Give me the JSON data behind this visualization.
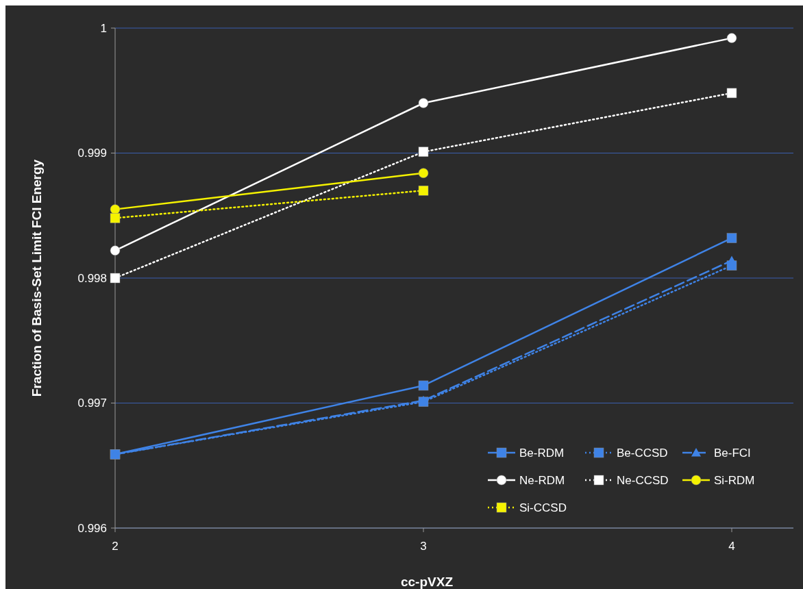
{
  "chart_data": {
    "type": "line",
    "xlabel": "cc-pVXZ",
    "ylabel": "Fraction of Basis-Set Limit FCI Energy",
    "x": [
      2,
      3,
      4
    ],
    "xlim": [
      2,
      4.2
    ],
    "xticks": [
      2,
      3,
      4
    ],
    "ylim": [
      0.996,
      1
    ],
    "yticks": [
      0.996,
      0.997,
      0.998,
      0.999,
      1
    ],
    "grid": "y",
    "legend": "bottom right",
    "series": [
      {
        "name": "Be-RDM",
        "color": "#3f83e6",
        "values": [
          0.99659,
          0.99714,
          0.99832
        ],
        "marker": "square",
        "line_style": "solid"
      },
      {
        "name": "Be-CCSD",
        "color": "#3f83e6",
        "values": [
          0.99659,
          0.99701,
          0.9981
        ],
        "marker": "square",
        "line_style": "dotted"
      },
      {
        "name": "Be-FCI",
        "color": "#3f83e6",
        "values": [
          0.99659,
          0.99702,
          0.99814
        ],
        "marker": "triangle",
        "line_style": "dashed"
      },
      {
        "name": "Ne-RDM",
        "color": "#ffffff",
        "values": [
          0.99822,
          0.9994,
          0.99992
        ],
        "marker": "circle",
        "line_style": "solid"
      },
      {
        "name": "Ne-CCSD",
        "color": "#ffffff",
        "values": [
          0.998,
          0.99901,
          0.99948
        ],
        "marker": "square",
        "line_style": "dotted"
      },
      {
        "name": "Si-RDM",
        "color": "#f5f200",
        "values": [
          0.99855,
          0.99884,
          null
        ],
        "marker": "circle",
        "line_style": "solid"
      },
      {
        "name": "Si-CCSD",
        "color": "#f5f200",
        "values": [
          0.99848,
          0.9987,
          null
        ],
        "marker": "square",
        "line_style": "dotted"
      }
    ]
  }
}
